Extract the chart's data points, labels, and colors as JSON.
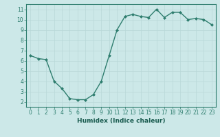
{
  "x": [
    0,
    1,
    2,
    3,
    4,
    5,
    6,
    7,
    8,
    9,
    10,
    11,
    12,
    13,
    14,
    15,
    16,
    17,
    18,
    19,
    20,
    21,
    22,
    23
  ],
  "y": [
    6.5,
    6.2,
    6.1,
    4.0,
    3.3,
    2.3,
    2.2,
    2.2,
    2.7,
    4.0,
    6.5,
    9.0,
    10.3,
    10.5,
    10.3,
    10.2,
    11.0,
    10.2,
    10.7,
    10.7,
    10.0,
    10.1,
    10.0,
    9.5
  ],
  "line_color": "#2e7d6e",
  "marker": "D",
  "marker_size": 2,
  "linewidth": 1.0,
  "xlabel": "Humidex (Indice chaleur)",
  "ylabel": "",
  "title": "",
  "xlim": [
    -0.5,
    23.5
  ],
  "ylim": [
    1.5,
    11.5
  ],
  "yticks": [
    2,
    3,
    4,
    5,
    6,
    7,
    8,
    9,
    10,
    11
  ],
  "xticks": [
    0,
    1,
    2,
    3,
    4,
    5,
    6,
    7,
    8,
    9,
    10,
    11,
    12,
    13,
    14,
    15,
    16,
    17,
    18,
    19,
    20,
    21,
    22,
    23
  ],
  "bg_color": "#cce8e8",
  "grid_color": "#b8d8d8",
  "line_spine_color": "#2e7d6e",
  "label_color": "#1a5c50",
  "xlabel_fontsize": 6.5,
  "tick_fontsize": 5.5
}
